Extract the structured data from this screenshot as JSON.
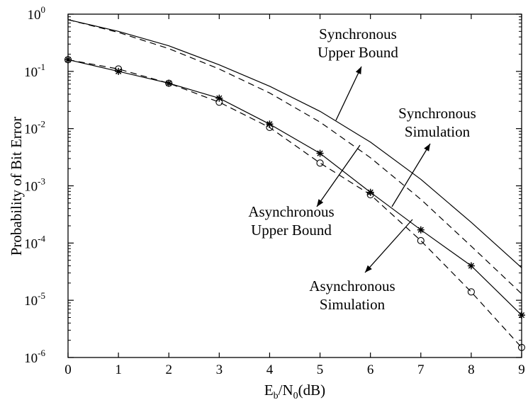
{
  "chart_data": {
    "type": "line",
    "title": "",
    "xlabel": {
      "base": "E",
      "sub1": "b",
      "mid": "/N",
      "sub2": "0",
      "tail": "(dB)"
    },
    "ylabel": "Probability of Bit Error",
    "xlim": [
      0,
      9
    ],
    "ylim": [
      1e-06,
      1
    ],
    "yscale": "log",
    "grid": false,
    "legend": "none",
    "x_ticks": [
      "0",
      "1",
      "2",
      "3",
      "4",
      "5",
      "6",
      "7",
      "8",
      "9"
    ],
    "y_ticks": [
      {
        "value": 1,
        "base": "10",
        "exp": "0"
      },
      {
        "value": 0.1,
        "base": "10",
        "exp": "-1"
      },
      {
        "value": 0.01,
        "base": "10",
        "exp": "-2"
      },
      {
        "value": 0.001,
        "base": "10",
        "exp": "-3"
      },
      {
        "value": 0.0001,
        "base": "10",
        "exp": "-4"
      },
      {
        "value": 1e-05,
        "base": "10",
        "exp": "-5"
      },
      {
        "value": 1e-06,
        "base": "10",
        "exp": "-6"
      }
    ],
    "series": [
      {
        "style": "solid",
        "marker": "none",
        "x": [
          0,
          1,
          2,
          3,
          4,
          5,
          6,
          7,
          8,
          9
        ],
        "y": [
          0.8,
          0.5,
          0.28,
          0.13,
          0.055,
          0.02,
          0.0058,
          0.0013,
          0.00023,
          3.7e-05
        ]
      },
      {
        "style": "dashed",
        "marker": "none",
        "x": [
          0,
          1,
          2,
          3,
          4,
          5,
          6,
          7,
          8,
          9
        ],
        "y": [
          0.8,
          0.48,
          0.25,
          0.11,
          0.042,
          0.013,
          0.0031,
          0.00058,
          8.8e-05,
          1.3e-05
        ]
      },
      {
        "style": "solid",
        "marker": "star",
        "x": [
          0,
          1,
          2,
          3,
          4,
          5,
          6,
          7,
          8,
          9
        ],
        "y": [
          0.16,
          0.1,
          0.062,
          0.034,
          0.012,
          0.0037,
          0.00077,
          0.00017,
          4e-05,
          5.5e-06
        ]
      },
      {
        "style": "dashed",
        "marker": "circle",
        "x": [
          0,
          1,
          2,
          3,
          4,
          5,
          6,
          7,
          8,
          9
        ],
        "y": [
          0.16,
          0.11,
          0.062,
          0.029,
          0.0105,
          0.0025,
          0.0007,
          0.00011,
          1.4e-05,
          1.5e-06
        ]
      }
    ],
    "annotations": [
      {
        "lines": [
          "Synchronous",
          "Upper Bound"
        ]
      },
      {
        "lines": [
          "Synchronous",
          "Simulation"
        ]
      },
      {
        "lines": [
          "Asynchronous",
          "Upper Bound"
        ]
      },
      {
        "lines": [
          "Asynchronous",
          "Simulation"
        ]
      }
    ]
  }
}
